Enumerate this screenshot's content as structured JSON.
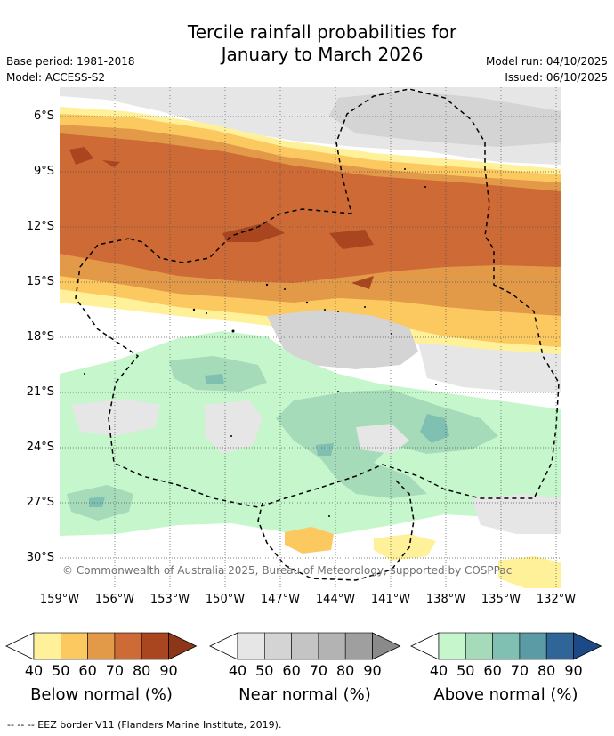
{
  "header": {
    "title_line1": "Tercile rainfall probabilities for",
    "title_line2": "January to March 2026",
    "base_period": "Base period: 1981-2018",
    "model": "Model: ACCESS-S2",
    "model_run": "Model run: 04/10/2025",
    "issued": "Issued: 06/10/2025"
  },
  "map": {
    "lat_labels": [
      "6°S",
      "9°S",
      "12°S",
      "15°S",
      "18°S",
      "21°S",
      "24°S",
      "27°S",
      "30°S"
    ],
    "lon_labels": [
      "159°W",
      "156°W",
      "153°W",
      "150°W",
      "147°W",
      "144°W",
      "141°W",
      "138°W",
      "135°W",
      "132°W"
    ],
    "copyright": "© Commonwealth of Australia 2025, Bureau of Meteorology, supported by COSPPac"
  },
  "legends": [
    {
      "title": "Below normal (%)",
      "ticks": [
        "40",
        "50",
        "60",
        "70",
        "80",
        "90"
      ],
      "colors": [
        "#fff09a",
        "#fcc860",
        "#e39a48",
        "#cd6a35",
        "#a9451f",
        "#8e3718"
      ]
    },
    {
      "title": "Near normal (%)",
      "ticks": [
        "40",
        "50",
        "60",
        "70",
        "80",
        "90"
      ],
      "colors": [
        "#e6e6e6",
        "#d4d4d4",
        "#c4c4c4",
        "#b3b3b3",
        "#9f9f9f",
        "#8a8a8a"
      ]
    },
    {
      "title": "Above normal (%)",
      "ticks": [
        "40",
        "50",
        "60",
        "70",
        "80",
        "90"
      ],
      "colors": [
        "#c6f6cc",
        "#a5dbb9",
        "#7fc0b2",
        "#5a9ba6",
        "#2f6597",
        "#1d4a86"
      ]
    }
  ],
  "footnote": "--  --  -- EEZ border V11 (Flanders Marine Institute, 2019)."
}
